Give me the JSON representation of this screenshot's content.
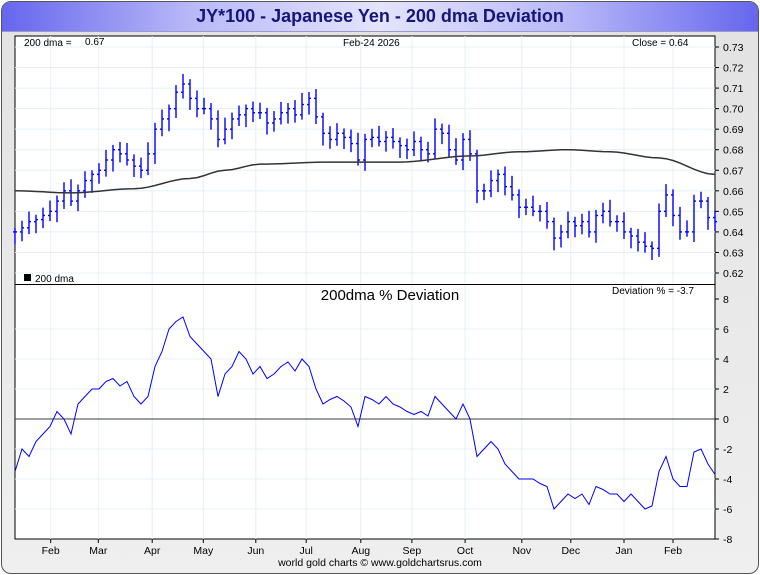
{
  "title": "JY*100  -  Japanese Yen - 200 dma Deviation",
  "footer": "world gold charts © www.goldchartsrus.com",
  "colors": {
    "price": "#0000ff",
    "dma": "#333333",
    "deviation": "#0000ff",
    "grid": "#e4f0f8"
  },
  "chart_data": [
    {
      "type": "bar",
      "panel": "price",
      "date_label": "Feb-24  2026",
      "dma_label": "200 dma =",
      "dma_value": "0.67",
      "close_label": "Close = 0.64",
      "legend": "200 dma",
      "ylim": [
        0.62,
        0.73
      ],
      "yticks": [
        "0.73",
        "0.72",
        "0.71",
        "0.70",
        "0.69",
        "0.68",
        "0.67",
        "0.66",
        "0.65",
        "0.64",
        "0.63",
        "0.62"
      ],
      "close": [
        0.64,
        0.642,
        0.645,
        0.646,
        0.648,
        0.65,
        0.655,
        0.66,
        0.655,
        0.66,
        0.665,
        0.668,
        0.67,
        0.675,
        0.68,
        0.678,
        0.675,
        0.672,
        0.67,
        0.678,
        0.69,
        0.695,
        0.7,
        0.708,
        0.712,
        0.705,
        0.7,
        0.7,
        0.695,
        0.685,
        0.69,
        0.695,
        0.697,
        0.7,
        0.698,
        0.698,
        0.693,
        0.695,
        0.698,
        0.7,
        0.697,
        0.702,
        0.705,
        0.696,
        0.688,
        0.685,
        0.688,
        0.686,
        0.683,
        0.675,
        0.685,
        0.686,
        0.684,
        0.686,
        0.684,
        0.682,
        0.68,
        0.684,
        0.68,
        0.678,
        0.69,
        0.688,
        0.68,
        0.675,
        0.685,
        0.678,
        0.66,
        0.66,
        0.665,
        0.668,
        0.662,
        0.658,
        0.652,
        0.652,
        0.65,
        0.65,
        0.645,
        0.637,
        0.64,
        0.645,
        0.643,
        0.645,
        0.64,
        0.648,
        0.65,
        0.645,
        0.645,
        0.64,
        0.638,
        0.635,
        0.633,
        0.632,
        0.65,
        0.658,
        0.648,
        0.64,
        0.64,
        0.655,
        0.655,
        0.647,
        0.645
      ],
      "dma": [
        [
          0,
          0.66
        ],
        [
          8,
          0.659
        ],
        [
          17,
          0.661
        ],
        [
          25,
          0.666
        ],
        [
          30,
          0.67
        ],
        [
          35,
          0.673
        ],
        [
          45,
          0.674
        ],
        [
          55,
          0.674
        ],
        [
          65,
          0.677
        ],
        [
          72,
          0.679
        ],
        [
          79,
          0.68
        ],
        [
          85,
          0.679
        ],
        [
          92,
          0.676
        ],
        [
          100,
          0.668
        ]
      ]
    },
    {
      "type": "line",
      "panel": "deviation",
      "title": "200dma  %  Deviation",
      "value_label": "Deviation % = -3.7",
      "ylim": [
        -8,
        8
      ],
      "yticks": [
        "8",
        "6",
        "4",
        "2",
        "0",
        "-2",
        "-4",
        "-6",
        "-8"
      ],
      "values": [
        -3.5,
        -2,
        -2.5,
        -1.5,
        -1.0,
        -0.5,
        0.5,
        0,
        -1,
        1,
        1.5,
        2,
        2,
        2.5,
        2.7,
        2.2,
        2.5,
        1.5,
        1,
        1.5,
        3.5,
        4.5,
        6,
        6.5,
        6.8,
        5.5,
        5,
        4.5,
        4,
        1.5,
        3,
        3.5,
        4.5,
        4,
        3,
        3.5,
        2.7,
        3.0,
        3.5,
        3.8,
        3.2,
        4,
        3.5,
        2.0,
        1,
        1.3,
        1.5,
        1.2,
        0.8,
        -0.5,
        1.5,
        1.3,
        1,
        1.5,
        1,
        0.8,
        0.5,
        0.3,
        0.5,
        0.2,
        1.5,
        1,
        0.5,
        0,
        1,
        0,
        -2.5,
        -2,
        -1.5,
        -2,
        -3,
        -3.5,
        -4,
        -4,
        -4,
        -4.3,
        -4.5,
        -6,
        -5.5,
        -5,
        -5.3,
        -5.0,
        -5.7,
        -4.5,
        -4.7,
        -5,
        -5,
        -5.5,
        -5,
        -5.5,
        -6,
        -5.8,
        -3.5,
        -2.5,
        -4,
        -4.5,
        -4.5,
        -2.2,
        -2,
        -3.0,
        -3.7
      ]
    }
  ],
  "xaxis": {
    "months": [
      {
        "label": "Feb",
        "at": 5.1
      },
      {
        "label": "Mar",
        "at": 11.9
      },
      {
        "label": "Apr",
        "at": 19.6
      },
      {
        "label": "May",
        "at": 26.9
      },
      {
        "label": "Jun",
        "at": 34.4
      },
      {
        "label": "Jul",
        "at": 41.6
      },
      {
        "label": "Aug",
        "at": 49.4
      },
      {
        "label": "Sep",
        "at": 56.7
      },
      {
        "label": "Oct",
        "at": 64.3
      },
      {
        "label": "Nov",
        "at": 72.4
      },
      {
        "label": "Dec",
        "at": 79.4
      },
      {
        "label": "Jan",
        "at": 87.0
      },
      {
        "label": "Feb",
        "at": 94.0
      }
    ]
  }
}
